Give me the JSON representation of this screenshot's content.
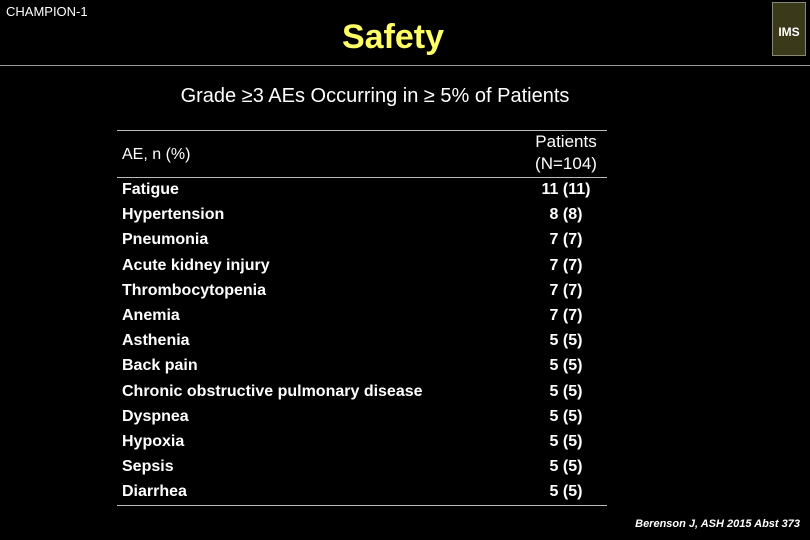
{
  "header": {
    "tag": "CHAMPION-1",
    "title": "Safety",
    "logo": "IMS"
  },
  "subtitle": "Grade ≥3 AEs Occurring in ≥ 5% of Patients",
  "table": {
    "header": [
      "AE, n (%)",
      "Patients\n(N=104)"
    ],
    "rows": [
      [
        "Fatigue",
        "11 (11)"
      ],
      [
        "Hypertension",
        "8 (8)"
      ],
      [
        "Pneumonia",
        "7 (7)"
      ],
      [
        "Acute kidney injury",
        "7 (7)"
      ],
      [
        "Thrombocytopenia",
        "7 (7)"
      ],
      [
        "Anemia",
        "7 (7)"
      ],
      [
        "Asthenia",
        "5 (5)"
      ],
      [
        "Back pain",
        "5 (5)"
      ],
      [
        "Chronic obstructive pulmonary disease",
        "5 (5)"
      ],
      [
        "Dyspnea",
        "5 (5)"
      ],
      [
        "Hypoxia",
        "5 (5)"
      ],
      [
        "Sepsis",
        "5 (5)"
      ],
      [
        "Diarrhea",
        "5 (5)"
      ]
    ]
  },
  "footer": {
    "citation": "Berenson J, ASH 2015 Abst 373"
  }
}
